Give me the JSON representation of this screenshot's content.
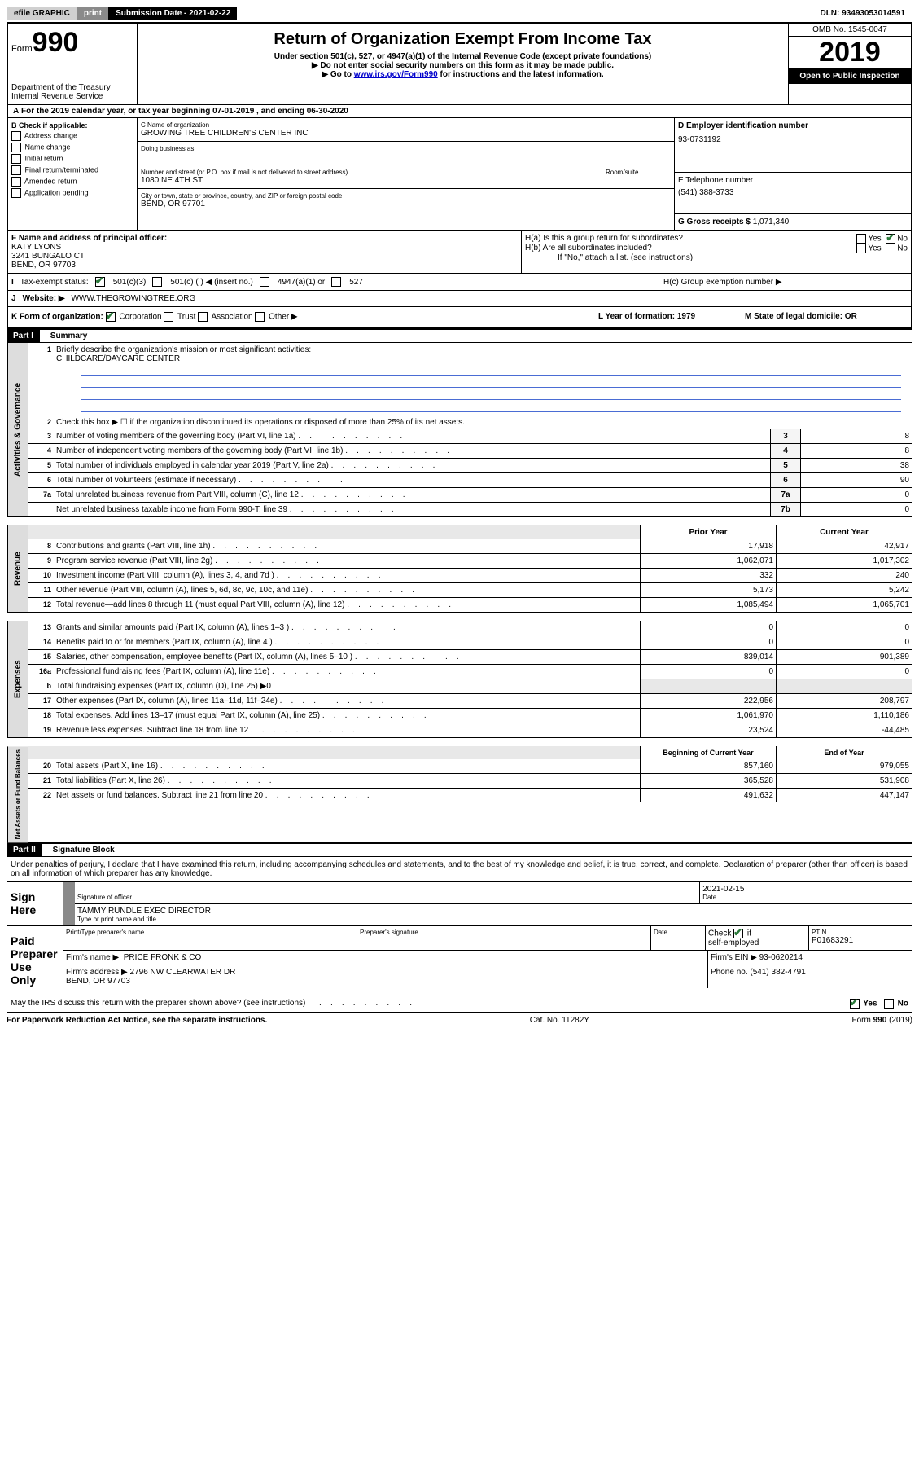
{
  "topbar": {
    "efile": "efile GRAPHIC",
    "print": "print",
    "subdate_label": "Submission Date - 2021-02-22",
    "dln": "DLN: 93493053014591"
  },
  "header": {
    "form_label": "Form",
    "form_num": "990",
    "dept": "Department of the Treasury\nInternal Revenue Service",
    "title": "Return of Organization Exempt From Income Tax",
    "subtitle": "Under section 501(c), 527, or 4947(a)(1) of the Internal Revenue Code (except private foundations)",
    "warn1": "▶ Do not enter social security numbers on this form as it may be made public.",
    "warn2_pre": "▶ Go to ",
    "warn2_link": "www.irs.gov/Form990",
    "warn2_post": " for instructions and the latest information.",
    "omb": "OMB No. 1545-0047",
    "year": "2019",
    "open": "Open to Public Inspection"
  },
  "A": {
    "text": "For the 2019 calendar year, or tax year beginning 07-01-2019    , and ending 06-30-2020"
  },
  "B": {
    "title": "B Check if applicable:",
    "items": [
      "Address change",
      "Name change",
      "Initial return",
      "Final return/terminated",
      "Amended return",
      "Application pending"
    ]
  },
  "C": {
    "name_label": "C Name of organization",
    "name": "GROWING TREE CHILDREN'S CENTER INC",
    "dba_label": "Doing business as",
    "addr_label": "Number and street (or P.O. box if mail is not delivered to street address)",
    "room_label": "Room/suite",
    "addr": "1080 NE 4TH ST",
    "city_label": "City or town, state or province, country, and ZIP or foreign postal code",
    "city": "BEND, OR  97701"
  },
  "D": {
    "label": "D Employer identification number",
    "value": "93-0731192"
  },
  "E": {
    "label": "E Telephone number",
    "value": "(541) 388-3733"
  },
  "G": {
    "label": "G Gross receipts $",
    "value": "1,071,340"
  },
  "F": {
    "label": "F  Name and address of principal officer:",
    "name": "KATY LYONS",
    "addr1": "3241 BUNGALO CT",
    "addr2": "BEND, OR  97703"
  },
  "H": {
    "a_label": "H(a)  Is this a group return for subordinates?",
    "b_label": "H(b)  Are all subordinates included?",
    "b_note": "If \"No,\" attach a list. (see instructions)",
    "c_label": "H(c)  Group exemption number ▶",
    "yes": "Yes",
    "no": "No"
  },
  "I": {
    "label": "Tax-exempt status:",
    "opts": [
      "501(c)(3)",
      "501(c) (    ) ◀ (insert no.)",
      "4947(a)(1) or",
      "527"
    ]
  },
  "J": {
    "label": "Website: ▶",
    "value": "WWW.THEGROWINGTREE.ORG"
  },
  "K": {
    "label": "K Form of organization:",
    "opts": [
      "Corporation",
      "Trust",
      "Association",
      "Other ▶"
    ],
    "L": "L Year of formation: 1979",
    "M": "M State of legal domicile: OR"
  },
  "part1": {
    "header": "Part I",
    "title": "Summary",
    "side_label": "Activities & Governance",
    "line1_label": "Briefly describe the organization's mission or most significant activities:",
    "line1_value": "CHILDCARE/DAYCARE CENTER",
    "line2": "Check this box ▶ ☐  if the organization discontinued its operations or disposed of more than 25% of its net assets.",
    "lines_gov": [
      {
        "n": "3",
        "desc": "Number of voting members of the governing body (Part VI, line 1a)",
        "box": "3",
        "val": "8"
      },
      {
        "n": "4",
        "desc": "Number of independent voting members of the governing body (Part VI, line 1b)",
        "box": "4",
        "val": "8"
      },
      {
        "n": "5",
        "desc": "Total number of individuals employed in calendar year 2019 (Part V, line 2a)",
        "box": "5",
        "val": "38"
      },
      {
        "n": "6",
        "desc": "Total number of volunteers (estimate if necessary)",
        "box": "6",
        "val": "90"
      },
      {
        "n": "7a",
        "desc": "Total unrelated business revenue from Part VIII, column (C), line 12",
        "box": "7a",
        "val": "0"
      },
      {
        "n": "",
        "desc": "Net unrelated business taxable income from Form 990-T, line 39",
        "box": "7b",
        "val": "0"
      }
    ],
    "rev_label": "Revenue",
    "col_py": "Prior Year",
    "col_cy": "Current Year",
    "lines_rev": [
      {
        "n": "8",
        "desc": "Contributions and grants (Part VIII, line 1h)",
        "py": "17,918",
        "cy": "42,917"
      },
      {
        "n": "9",
        "desc": "Program service revenue (Part VIII, line 2g)",
        "py": "1,062,071",
        "cy": "1,017,302"
      },
      {
        "n": "10",
        "desc": "Investment income (Part VIII, column (A), lines 3, 4, and 7d )",
        "py": "332",
        "cy": "240"
      },
      {
        "n": "11",
        "desc": "Other revenue (Part VIII, column (A), lines 5, 6d, 8c, 9c, 10c, and 11e)",
        "py": "5,173",
        "cy": "5,242"
      },
      {
        "n": "12",
        "desc": "Total revenue—add lines 8 through 11 (must equal Part VIII, column (A), line 12)",
        "py": "1,085,494",
        "cy": "1,065,701"
      }
    ],
    "exp_label": "Expenses",
    "lines_exp": [
      {
        "n": "13",
        "desc": "Grants and similar amounts paid (Part IX, column (A), lines 1–3 )",
        "py": "0",
        "cy": "0"
      },
      {
        "n": "14",
        "desc": "Benefits paid to or for members (Part IX, column (A), line 4 )",
        "py": "0",
        "cy": "0"
      },
      {
        "n": "15",
        "desc": "Salaries, other compensation, employee benefits (Part IX, column (A), lines 5–10 )",
        "py": "839,014",
        "cy": "901,389"
      },
      {
        "n": "16a",
        "desc": "Professional fundraising fees (Part IX, column (A), line 11e)",
        "py": "0",
        "cy": "0"
      },
      {
        "n": "b",
        "desc": "Total fundraising expenses (Part IX, column (D), line 25) ▶0",
        "py": "",
        "cy": "",
        "shaded": true
      },
      {
        "n": "17",
        "desc": "Other expenses (Part IX, column (A), lines 11a–11d, 11f–24e)",
        "py": "222,956",
        "cy": "208,797"
      },
      {
        "n": "18",
        "desc": "Total expenses. Add lines 13–17 (must equal Part IX, column (A), line 25)",
        "py": "1,061,970",
        "cy": "1,110,186"
      },
      {
        "n": "19",
        "desc": "Revenue less expenses. Subtract line 18 from line 12",
        "py": "23,524",
        "cy": "-44,485"
      }
    ],
    "na_label": "Net Assets or Fund Balances",
    "col_boy": "Beginning of Current Year",
    "col_eoy": "End of Year",
    "lines_na": [
      {
        "n": "20",
        "desc": "Total assets (Part X, line 16)",
        "py": "857,160",
        "cy": "979,055"
      },
      {
        "n": "21",
        "desc": "Total liabilities (Part X, line 26)",
        "py": "365,528",
        "cy": "531,908"
      },
      {
        "n": "22",
        "desc": "Net assets or fund balances. Subtract line 21 from line 20",
        "py": "491,632",
        "cy": "447,147"
      }
    ]
  },
  "part2": {
    "header": "Part II",
    "title": "Signature Block",
    "perjury": "Under penalties of perjury, I declare that I have examined this return, including accompanying schedules and statements, and to the best of my knowledge and belief, it is true, correct, and complete. Declaration of preparer (other than officer) is based on all information of which preparer has any knowledge.",
    "sign_here": "Sign Here",
    "sig_officer": "Signature of officer",
    "date_label": "Date",
    "date_val": "2021-02-15",
    "name_title": "TAMMY RUNDLE  EXEC DIRECTOR",
    "name_title_label": "Type or print name and title",
    "paid_label": "Paid Preparer Use Only",
    "prep_name_label": "Print/Type preparer's name",
    "prep_sig_label": "Preparer's signature",
    "check_se": "Check ☑ if self-employed",
    "ptin_label": "PTIN",
    "ptin_val": "P01683291",
    "firm_name_label": "Firm's name    ▶",
    "firm_name": "PRICE FRONK & CO",
    "firm_ein_label": "Firm's EIN ▶",
    "firm_ein": "93-0620214",
    "firm_addr_label": "Firm's address ▶",
    "firm_addr": "2796 NW CLEARWATER DR\nBEND, OR  97703",
    "firm_phone_label": "Phone no.",
    "firm_phone": "(541) 382-4791",
    "discuss": "May the IRS discuss this return with the preparer shown above? (see instructions)",
    "yes": "Yes",
    "no": "No"
  },
  "footer": {
    "left": "For Paperwork Reduction Act Notice, see the separate instructions.",
    "mid": "Cat. No. 11282Y",
    "right": "Form 990 (2019)"
  }
}
